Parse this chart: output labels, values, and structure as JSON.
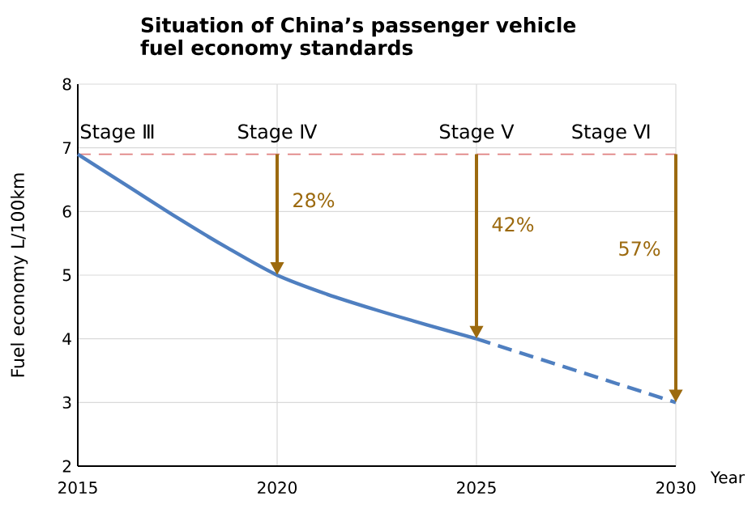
{
  "chart_data": {
    "type": "line",
    "title": "Situation of China’s passenger vehicle fuel economy standards",
    "xlabel": "Year",
    "ylabel": "Fuel economy L/100km",
    "xlim": [
      2015,
      2030
    ],
    "ylim": [
      2,
      8
    ],
    "xticks": [
      2015,
      2020,
      2025,
      2030
    ],
    "yticks": [
      2,
      3,
      4,
      5,
      6,
      7,
      8
    ],
    "grid": true,
    "series": [
      {
        "color": "#4f7fc0",
        "line_style": "solid",
        "x": [
          2015,
          2016.25,
          2017.5,
          2018.75,
          2020,
          2021.25,
          2022.5,
          2023.75,
          2025
        ],
        "values": [
          6.9,
          6.4,
          5.9,
          5.43,
          5.0,
          4.7,
          4.45,
          4.22,
          4.0
        ]
      },
      {
        "color": "#4f7fc0",
        "line_style": "dashed",
        "x": [
          2025,
          2030
        ],
        "values": [
          4.0,
          3.0
        ]
      }
    ],
    "ref_lines": [
      {
        "axis": "y",
        "value": 6.9,
        "color": "#e08080",
        "line_style": "dashed"
      }
    ],
    "annotations": [
      "Stage Ⅲ",
      "Stage Ⅳ",
      "Stage Ⅴ",
      "Stage Ⅵ",
      "28%",
      "42%",
      "57%"
    ]
  }
}
